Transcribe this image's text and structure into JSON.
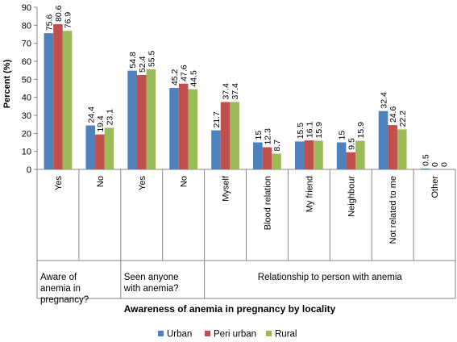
{
  "chart_data": {
    "type": "bar",
    "ylabel": "Percent (%)",
    "xlabel": "Awareness of anemia in pregnancy by locality",
    "ylim": [
      0,
      90
    ],
    "yticks": [
      0,
      10,
      20,
      30,
      40,
      50,
      60,
      70,
      80,
      90
    ],
    "categories": [
      "Yes",
      "No",
      "Yes",
      "No",
      "Myself",
      "Blood relation",
      "My friend",
      "Neighbour",
      "Not related to me",
      "Other"
    ],
    "groups": [
      {
        "label": "Aware of anemia in pregnancy?",
        "categories": [
          0,
          1
        ]
      },
      {
        "label": "Seen anyone with anemia?",
        "categories": [
          2,
          3
        ]
      },
      {
        "label": "Relationship to person with anemia",
        "categories": [
          4,
          5,
          6,
          7,
          8,
          9
        ]
      }
    ],
    "series": [
      {
        "name": "Urban",
        "color": "#4F81BD",
        "values": [
          75.6,
          24.4,
          54.8,
          45.2,
          21.7,
          15,
          15.5,
          15,
          32.4,
          0.5
        ]
      },
      {
        "name": "Peri urban",
        "color": "#C0504D",
        "values": [
          80.6,
          19.4,
          52.4,
          47.6,
          37.4,
          12.3,
          16.1,
          9.5,
          24.6,
          0
        ]
      },
      {
        "name": "Rural",
        "color": "#9BBB59",
        "values": [
          76.9,
          23.1,
          55.5,
          44.5,
          37.4,
          8.7,
          15.9,
          15.9,
          22.2,
          0
        ]
      }
    ],
    "grid": false,
    "legend": "bottom"
  }
}
